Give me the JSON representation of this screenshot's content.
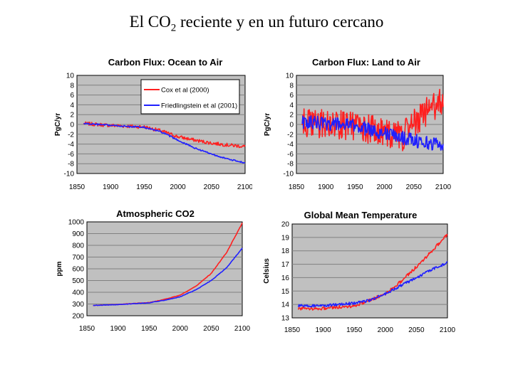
{
  "page": {
    "title_pre": "El CO",
    "title_sub": "2",
    "title_post": " reciente y en un futuro cercano"
  },
  "colors": {
    "plot_bg": "#c0c0c0",
    "grid": "#808080",
    "red": "#ff2020",
    "blue": "#2020ff"
  },
  "chart_data": [
    {
      "type": "line",
      "title": "Carbon Flux: Ocean to Air",
      "ylabel": "PgC/yr",
      "xlim": [
        1850,
        2100
      ],
      "ylim": [
        -10,
        10
      ],
      "xticks": [
        1850,
        1900,
        1950,
        2000,
        2050,
        2100
      ],
      "yticks": [
        -10,
        -8,
        -6,
        -4,
        -2,
        0,
        2,
        4,
        6,
        8,
        10
      ],
      "grid": true,
      "legend": "top-right",
      "series": [
        {
          "name": "Cox et al (2000)",
          "color": "#ff2020",
          "noise": 0.35,
          "points": [
            [
              1860,
              0.2
            ],
            [
              1900,
              -0.2
            ],
            [
              1950,
              -0.5
            ],
            [
              1975,
              -1.3
            ],
            [
              2000,
              -2.5
            ],
            [
              2025,
              -3.2
            ],
            [
              2050,
              -3.8
            ],
            [
              2075,
              -4.2
            ],
            [
              2100,
              -4.5
            ]
          ]
        },
        {
          "name": "Friedlingstein et al (2001)",
          "color": "#2020ff",
          "noise": 0.15,
          "points": [
            [
              1860,
              0.2
            ],
            [
              1900,
              -0.2
            ],
            [
              1950,
              -0.6
            ],
            [
              1975,
              -1.5
            ],
            [
              2000,
              -3.2
            ],
            [
              2025,
              -4.8
            ],
            [
              2050,
              -6
            ],
            [
              2075,
              -7.1
            ],
            [
              2100,
              -7.8
            ]
          ]
        }
      ]
    },
    {
      "type": "line",
      "title": "Carbon Flux: Land to Air",
      "ylabel": "PgC/yr",
      "xlim": [
        1850,
        2100
      ],
      "ylim": [
        -10,
        10
      ],
      "xticks": [
        1850,
        1900,
        1950,
        2000,
        2050,
        2100
      ],
      "yticks": [
        -10,
        -8,
        -6,
        -4,
        -2,
        0,
        2,
        4,
        6,
        8,
        10
      ],
      "grid": true,
      "series": [
        {
          "name": "Cox et al (2000)",
          "color": "#ff2020",
          "noise": 3.0,
          "points": [
            [
              1860,
              0.2
            ],
            [
              1900,
              0
            ],
            [
              1950,
              -0.3
            ],
            [
              2000,
              -1.5
            ],
            [
              2030,
              -2.5
            ],
            [
              2050,
              0
            ],
            [
              2075,
              3
            ],
            [
              2100,
              5
            ]
          ]
        },
        {
          "name": "Friedlingstein et al (2001)",
          "color": "#2020ff",
          "noise": 1.4,
          "points": [
            [
              1860,
              0.5
            ],
            [
              1900,
              0.2
            ],
            [
              1950,
              -0.3
            ],
            [
              2000,
              -1.8
            ],
            [
              2050,
              -3.2
            ],
            [
              2075,
              -3.8
            ],
            [
              2100,
              -4
            ]
          ]
        }
      ]
    },
    {
      "type": "line",
      "title": "Atmospheric CO2",
      "ylabel": "ppm",
      "xlim": [
        1850,
        2100
      ],
      "ylim": [
        200,
        1000
      ],
      "xticks": [
        1850,
        1900,
        1950,
        2000,
        2050,
        2100
      ],
      "yticks": [
        200,
        300,
        400,
        500,
        600,
        700,
        800,
        900,
        1000
      ],
      "grid": true,
      "series": [
        {
          "name": "Cox et al (2000)",
          "color": "#ff2020",
          "noise": 2,
          "points": [
            [
              1860,
              288
            ],
            [
              1900,
              296
            ],
            [
              1950,
              312
            ],
            [
              1975,
              340
            ],
            [
              2000,
              375
            ],
            [
              2025,
              450
            ],
            [
              2050,
              560
            ],
            [
              2075,
              740
            ],
            [
              2100,
              990
            ]
          ]
        },
        {
          "name": "Friedlingstein et al (2001)",
          "color": "#2020ff",
          "noise": 2,
          "points": [
            [
              1860,
              288
            ],
            [
              1900,
              295
            ],
            [
              1950,
              310
            ],
            [
              1975,
              332
            ],
            [
              2000,
              362
            ],
            [
              2025,
              420
            ],
            [
              2050,
              500
            ],
            [
              2075,
              610
            ],
            [
              2100,
              775
            ]
          ]
        }
      ]
    },
    {
      "type": "line",
      "title": "Global Mean Temperature",
      "ylabel": "Celsius",
      "xlim": [
        1850,
        2100
      ],
      "ylim": [
        13,
        20
      ],
      "xticks": [
        1850,
        1900,
        1950,
        2000,
        2050,
        2100
      ],
      "yticks": [
        13,
        14,
        15,
        16,
        17,
        18,
        19,
        20
      ],
      "grid": true,
      "series": [
        {
          "name": "Cox et al (2000)",
          "color": "#ff2020",
          "noise": 0.12,
          "points": [
            [
              1860,
              13.7
            ],
            [
              1900,
              13.7
            ],
            [
              1950,
              13.9
            ],
            [
              1975,
              14.3
            ],
            [
              2000,
              14.8
            ],
            [
              2025,
              15.7
            ],
            [
              2050,
              16.8
            ],
            [
              2075,
              18
            ],
            [
              2100,
              19.2
            ]
          ]
        },
        {
          "name": "Friedlingstein et al (2001)",
          "color": "#2020ff",
          "noise": 0.1,
          "points": [
            [
              1860,
              13.9
            ],
            [
              1900,
              13.9
            ],
            [
              1950,
              14.1
            ],
            [
              1975,
              14.3
            ],
            [
              2000,
              14.8
            ],
            [
              2025,
              15.4
            ],
            [
              2050,
              16
            ],
            [
              2075,
              16.6
            ],
            [
              2100,
              17.1
            ]
          ]
        }
      ]
    }
  ]
}
